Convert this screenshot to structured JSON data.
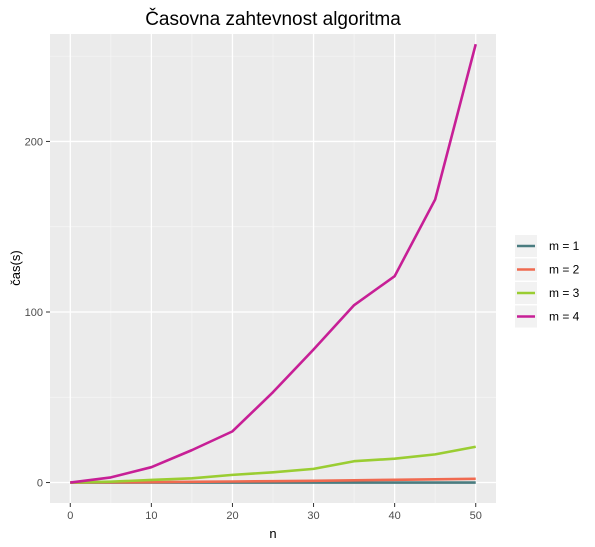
{
  "chart_data": {
    "type": "line",
    "title": "Časovna zahtevnost algoritma",
    "xlabel": "n",
    "ylabel": "čas(s)",
    "xlim": [
      -2.5,
      52.5
    ],
    "ylim": [
      -12,
      263
    ],
    "xticks": [
      0,
      10,
      20,
      30,
      40,
      50
    ],
    "yticks": [
      0,
      100,
      200
    ],
    "grid": true,
    "legend_position": "right",
    "x": [
      0,
      5,
      10,
      15,
      20,
      25,
      30,
      35,
      40,
      45,
      50
    ],
    "series": [
      {
        "name": "m = 1",
        "color": "#4a7c80",
        "values": [
          0,
          0,
          0,
          0,
          0,
          0,
          0,
          0,
          0,
          0,
          0
        ]
      },
      {
        "name": "m = 2",
        "color": "#f06a50",
        "values": [
          0,
          0.1,
          0.2,
          0.4,
          0.6,
          0.8,
          1.0,
          1.3,
          1.6,
          1.9,
          2.2
        ]
      },
      {
        "name": "m = 3",
        "color": "#9acd32",
        "values": [
          0,
          0.5,
          1.5,
          2.5,
          4.5,
          6.0,
          8.0,
          12.5,
          14.0,
          16.5,
          21.0
        ]
      },
      {
        "name": "m = 4",
        "color": "#c71f96",
        "values": [
          0,
          3,
          9,
          19,
          30,
          53,
          78,
          104,
          121,
          166,
          257
        ]
      }
    ]
  }
}
